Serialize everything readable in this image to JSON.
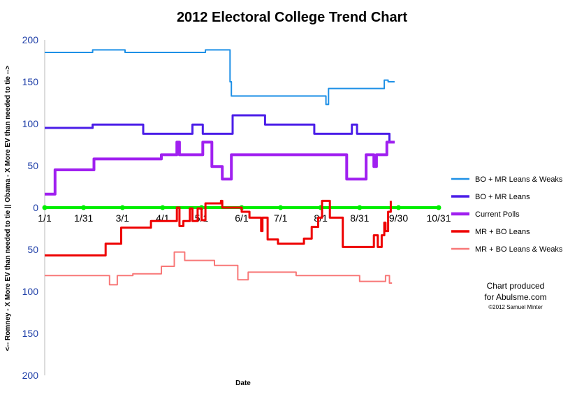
{
  "chart_data": {
    "type": "line",
    "title": "2012 Electoral College Trend Chart",
    "xlabel": "Date",
    "ylabel": "<-- Romney - X More EV than needed to tie  ||  Obama - X More EV than needed to tie -->",
    "ylim": [
      -200,
      200
    ],
    "y_ticks": [
      {
        "value": 200,
        "label": "200"
      },
      {
        "value": 150,
        "label": "150"
      },
      {
        "value": 100,
        "label": "100"
      },
      {
        "value": 50,
        "label": "50"
      },
      {
        "value": 0,
        "label": "0"
      },
      {
        "value": -50,
        "label": "50"
      },
      {
        "value": -100,
        "label": "100"
      },
      {
        "value": -150,
        "label": "150"
      },
      {
        "value": -200,
        "label": "200"
      }
    ],
    "x_ticks": [
      {
        "day": 0,
        "label": "1/1"
      },
      {
        "day": 30,
        "label": "1/31"
      },
      {
        "day": 60,
        "label": "3/1"
      },
      {
        "day": 91,
        "label": "4/1"
      },
      {
        "day": 121,
        "label": "5/1"
      },
      {
        "day": 152,
        "label": "6/1"
      },
      {
        "day": 182,
        "label": "7/1"
      },
      {
        "day": 213,
        "label": "8/1"
      },
      {
        "day": 243,
        "label": "8/31"
      },
      {
        "day": 273,
        "label": "9/30"
      },
      {
        "day": 304,
        "label": "10/31"
      }
    ],
    "xlim_days": [
      0,
      304
    ],
    "grid": false,
    "legend_position": "right",
    "series": [
      {
        "name": "BO + MR Leans & Weaks",
        "color": "#1e90e6",
        "width": 2,
        "points": [
          [
            0,
            185
          ],
          [
            37,
            185
          ],
          [
            37,
            188
          ],
          [
            62,
            188
          ],
          [
            62,
            185
          ],
          [
            124,
            185
          ],
          [
            124,
            188
          ],
          [
            143,
            188
          ],
          [
            143,
            150
          ],
          [
            144,
            150
          ],
          [
            144,
            133
          ],
          [
            217,
            133
          ],
          [
            217,
            123
          ],
          [
            219,
            123
          ],
          [
            219,
            142
          ],
          [
            262,
            142
          ],
          [
            262,
            152
          ],
          [
            265,
            152
          ],
          [
            265,
            150
          ],
          [
            270,
            150
          ]
        ]
      },
      {
        "name": "BO + MR Leans",
        "color": "#4b1ee8",
        "width": 3,
        "points": [
          [
            0,
            95
          ],
          [
            37,
            95
          ],
          [
            37,
            99
          ],
          [
            76,
            99
          ],
          [
            76,
            88
          ],
          [
            114,
            88
          ],
          [
            114,
            99
          ],
          [
            122,
            99
          ],
          [
            122,
            88
          ],
          [
            145,
            88
          ],
          [
            145,
            110
          ],
          [
            170,
            110
          ],
          [
            170,
            99
          ],
          [
            208,
            99
          ],
          [
            208,
            88
          ],
          [
            237,
            88
          ],
          [
            237,
            99
          ],
          [
            241,
            99
          ],
          [
            241,
            88
          ],
          [
            266,
            88
          ],
          [
            266,
            78
          ],
          [
            270,
            78
          ]
        ]
      },
      {
        "name": "Current Polls",
        "color": "#a020f0",
        "width": 4,
        "points": [
          [
            0,
            16
          ],
          [
            8,
            16
          ],
          [
            8,
            45
          ],
          [
            38,
            45
          ],
          [
            38,
            58
          ],
          [
            90,
            58
          ],
          [
            90,
            63
          ],
          [
            102,
            63
          ],
          [
            102,
            78
          ],
          [
            104,
            78
          ],
          [
            104,
            63
          ],
          [
            122,
            63
          ],
          [
            122,
            78
          ],
          [
            129,
            78
          ],
          [
            129,
            49
          ],
          [
            137,
            49
          ],
          [
            137,
            34
          ],
          [
            144,
            34
          ],
          [
            144,
            63
          ],
          [
            233,
            63
          ],
          [
            233,
            34
          ],
          [
            248,
            34
          ],
          [
            248,
            63
          ],
          [
            254,
            63
          ],
          [
            254,
            49
          ],
          [
            256,
            49
          ],
          [
            256,
            63
          ],
          [
            264,
            63
          ],
          [
            264,
            78
          ],
          [
            270,
            78
          ]
        ]
      },
      {
        "name": "MR + BO Leans",
        "color": "#ee0000",
        "width": 3,
        "points": [
          [
            0,
            -57
          ],
          [
            47,
            -57
          ],
          [
            47,
            -43
          ],
          [
            59,
            -43
          ],
          [
            59,
            -24
          ],
          [
            82,
            -24
          ],
          [
            82,
            -16
          ],
          [
            102,
            -16
          ],
          [
            102,
            0
          ],
          [
            104,
            0
          ],
          [
            104,
            -22
          ],
          [
            107,
            -22
          ],
          [
            107,
            -16
          ],
          [
            112,
            -16
          ],
          [
            112,
            -1
          ],
          [
            114,
            -1
          ],
          [
            114,
            -16
          ],
          [
            118,
            -16
          ],
          [
            118,
            -1
          ],
          [
            121,
            -1
          ],
          [
            121,
            -15
          ],
          [
            124,
            -15
          ],
          [
            124,
            5
          ],
          [
            136,
            5
          ],
          [
            136,
            8
          ],
          [
            137,
            8
          ],
          [
            137,
            0
          ],
          [
            152,
            0
          ],
          [
            152,
            -5
          ],
          [
            158,
            -5
          ],
          [
            158,
            -12
          ],
          [
            167,
            -12
          ],
          [
            167,
            -28
          ],
          [
            168,
            -28
          ],
          [
            168,
            -12
          ],
          [
            172,
            -12
          ],
          [
            172,
            -38
          ],
          [
            180,
            -38
          ],
          [
            180,
            -43
          ],
          [
            200,
            -43
          ],
          [
            200,
            -37
          ],
          [
            206,
            -37
          ],
          [
            206,
            -23
          ],
          [
            211,
            -23
          ],
          [
            211,
            -12
          ],
          [
            214,
            -12
          ],
          [
            214,
            8
          ],
          [
            220,
            8
          ],
          [
            220,
            -12
          ],
          [
            230,
            -12
          ],
          [
            230,
            -47
          ],
          [
            254,
            -47
          ],
          [
            254,
            -33
          ],
          [
            257,
            -33
          ],
          [
            257,
            -47
          ],
          [
            260,
            -47
          ],
          [
            260,
            -33
          ],
          [
            262,
            -33
          ],
          [
            262,
            -18
          ],
          [
            263,
            -18
          ],
          [
            263,
            -28
          ],
          [
            265,
            -28
          ],
          [
            265,
            -5
          ],
          [
            267,
            -5
          ],
          [
            267,
            8
          ]
        ]
      },
      {
        "name": "MR + BO Leans & Weaks",
        "color": "#f87878",
        "width": 2,
        "points": [
          [
            0,
            -81
          ],
          [
            50,
            -81
          ],
          [
            50,
            -92
          ],
          [
            56,
            -92
          ],
          [
            56,
            -81
          ],
          [
            68,
            -81
          ],
          [
            68,
            -79
          ],
          [
            90,
            -79
          ],
          [
            90,
            -70
          ],
          [
            100,
            -70
          ],
          [
            100,
            -53
          ],
          [
            108,
            -53
          ],
          [
            108,
            -63
          ],
          [
            131,
            -63
          ],
          [
            131,
            -69
          ],
          [
            149,
            -69
          ],
          [
            149,
            -86
          ],
          [
            157,
            -86
          ],
          [
            157,
            -77
          ],
          [
            194,
            -77
          ],
          [
            194,
            -81
          ],
          [
            243,
            -81
          ],
          [
            243,
            -88
          ],
          [
            263,
            -88
          ],
          [
            263,
            -81
          ],
          [
            266,
            -81
          ],
          [
            266,
            -90
          ],
          [
            268,
            -90
          ]
        ]
      },
      {
        "name": "",
        "color": "#00ee00",
        "width": 4,
        "points": [
          [
            0,
            0
          ],
          [
            304,
            0
          ]
        ],
        "markers": true
      }
    ],
    "annotation": {
      "line1": "Chart produced",
      "line2": "for Abulsme.com",
      "line3": "©2012 Samuel Minter"
    }
  }
}
